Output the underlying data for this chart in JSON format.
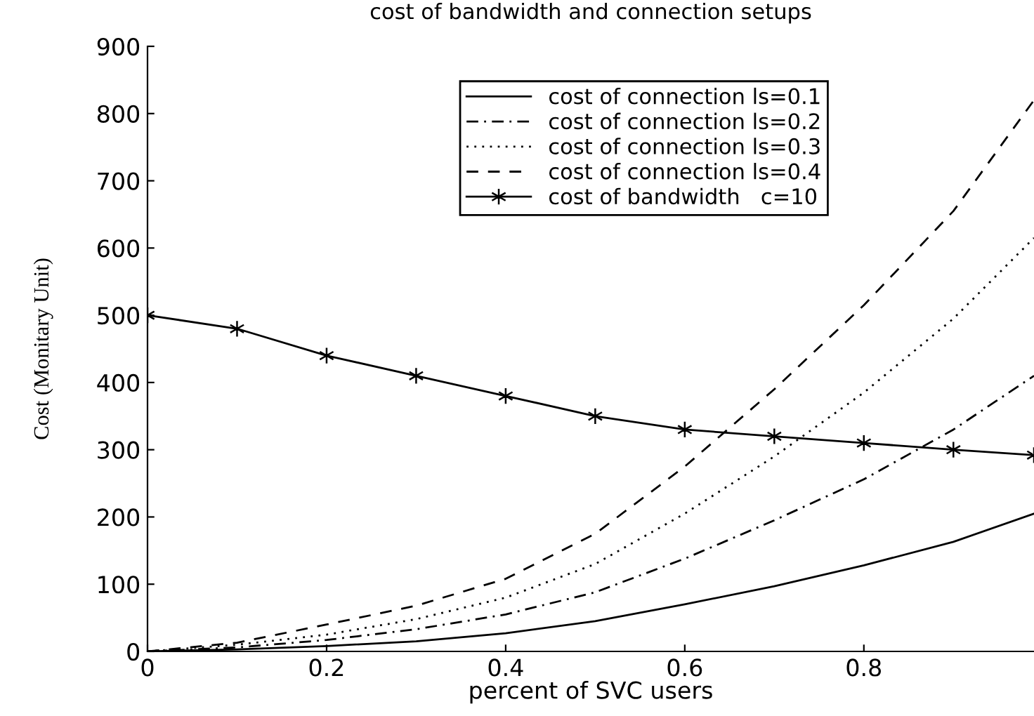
{
  "chart_data": {
    "type": "line",
    "title": "cost of bandwidth and connection setups",
    "xlabel": "percent of SVC users",
    "ylabel": "Cost (Monitary Unit)",
    "x": [
      0,
      0.1,
      0.2,
      0.3,
      0.4,
      0.5,
      0.6,
      0.7,
      0.8,
      0.9,
      0.99
    ],
    "series": [
      {
        "name": "cost of connection ls=0.1",
        "color": "#000000",
        "line_style": "solid",
        "marker": "none",
        "values": [
          0,
          3,
          8,
          15,
          27,
          45,
          70,
          97,
          128,
          163,
          205
        ]
      },
      {
        "name": "cost of connection ls=0.2",
        "color": "#000000",
        "line_style": "dashdot",
        "marker": "none",
        "values": [
          0,
          6,
          17,
          33,
          55,
          88,
          138,
          195,
          256,
          330,
          410
        ]
      },
      {
        "name": "cost of connection ls=0.3",
        "color": "#000000",
        "line_style": "dotted",
        "marker": "none",
        "values": [
          0,
          10,
          25,
          48,
          80,
          130,
          205,
          290,
          385,
          495,
          615
        ]
      },
      {
        "name": "cost of connection ls=0.4",
        "color": "#000000",
        "line_style": "dashed",
        "marker": "none",
        "values": [
          0,
          13,
          40,
          68,
          108,
          175,
          275,
          390,
          515,
          655,
          820
        ]
      },
      {
        "name": "cost of bandwidth   c=10",
        "color": "#000000",
        "line_style": "solid",
        "marker": "cross",
        "values": [
          500,
          480,
          440,
          410,
          380,
          350,
          330,
          320,
          310,
          300,
          292
        ]
      }
    ],
    "xlim": [
      0,
      0.99
    ],
    "xticks": [
      0,
      0.2,
      0.4,
      0.6,
      0.8
    ],
    "ylim": [
      0,
      900
    ],
    "yticks": [
      0,
      100,
      200,
      300,
      400,
      500,
      600,
      700,
      800,
      900
    ],
    "grid": false,
    "legend": "top center"
  }
}
